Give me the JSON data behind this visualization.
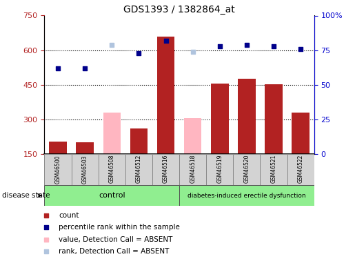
{
  "title": "GDS1393 / 1382864_at",
  "samples": [
    "GSM46500",
    "GSM46503",
    "GSM46508",
    "GSM46512",
    "GSM46516",
    "GSM46518",
    "GSM46519",
    "GSM46520",
    "GSM46521",
    "GSM46522"
  ],
  "count_values": [
    205,
    200,
    null,
    262,
    660,
    null,
    455,
    475,
    452,
    330
  ],
  "count_absent": [
    null,
    null,
    330,
    null,
    null,
    305,
    null,
    null,
    null,
    null
  ],
  "rank_present_dots": [
    62,
    62,
    null,
    73,
    82,
    null,
    78,
    79,
    78,
    76
  ],
  "rank_absent_dots": [
    null,
    null,
    79,
    null,
    null,
    74,
    null,
    null,
    null,
    null
  ],
  "ylim_left": [
    150,
    750
  ],
  "ylim_right": [
    0,
    100
  ],
  "yticks_left": [
    150,
    300,
    450,
    600,
    750
  ],
  "yticks_right": [
    0,
    25,
    50,
    75,
    100
  ],
  "bar_color_present": "#b22222",
  "bar_color_absent": "#ffb6c1",
  "dot_color_present": "#00008b",
  "dot_color_absent": "#b0c4de",
  "control_label": "control",
  "disease_label": "diabetes-induced erectile dysfunction",
  "group_color": "#90ee90",
  "tick_color_left": "#b22222",
  "tick_color_right": "#0000cd",
  "grid_levels": [
    300,
    450,
    600
  ],
  "legend_items": [
    {
      "color": "#b22222",
      "label": "count"
    },
    {
      "color": "#00008b",
      "label": "percentile rank within the sample"
    },
    {
      "color": "#ffb6c1",
      "label": "value, Detection Call = ABSENT"
    },
    {
      "color": "#b0c4de",
      "label": "rank, Detection Call = ABSENT"
    }
  ]
}
